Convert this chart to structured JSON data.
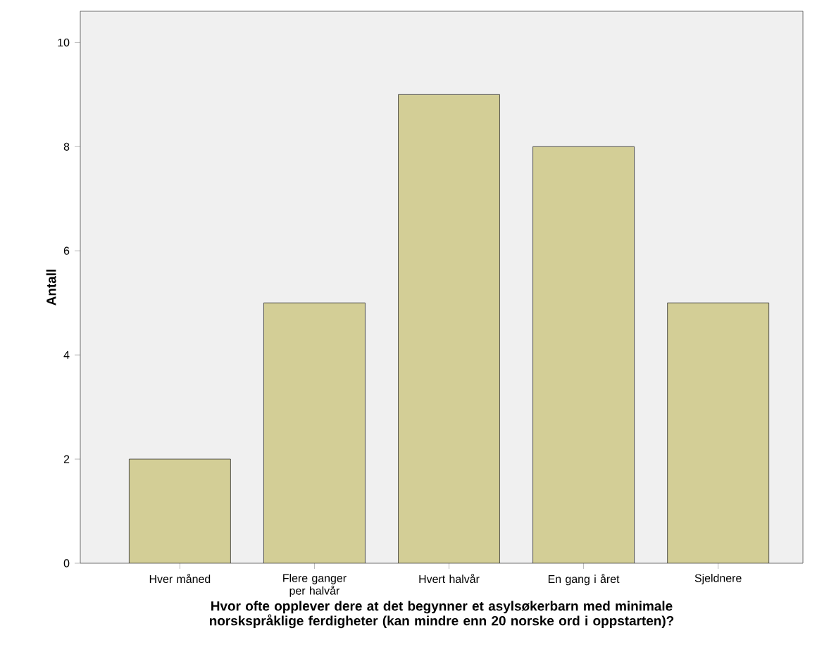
{
  "chart_data": {
    "type": "bar",
    "xlabel": "Hvor ofte opplever dere at det begynner et asylsøkerbarn med minimale norskspråklige ferdigheter (kan mindre enn 20 norske ord i oppstarten)?",
    "ylabel": "Antall",
    "categories": [
      "Hver måned",
      "Flere ganger per halvår",
      "Hvert halvår",
      "En gang i året",
      "Sjeldnere"
    ],
    "values": [
      2,
      5,
      9,
      8,
      5
    ],
    "color": "#d3ce96",
    "ylim": [
      0,
      10.6
    ],
    "yticks": [
      0,
      2,
      4,
      6,
      8,
      10
    ]
  }
}
